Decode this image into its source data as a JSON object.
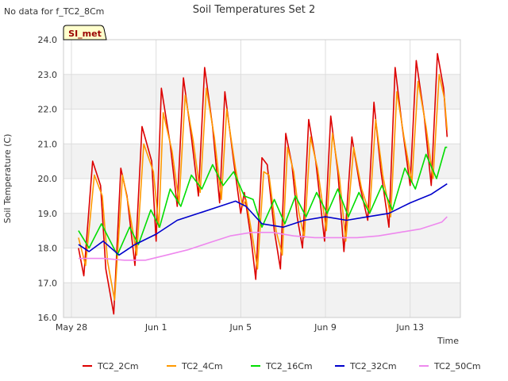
{
  "page": {
    "corner_note": "No data for f_TC2_8Cm",
    "badge": "SI_met"
  },
  "chart_data": {
    "type": "line",
    "title": "Soil Temperatures Set 2",
    "xlabel": "Time",
    "ylabel": "Soil Temperature (C)",
    "xlim": [
      "2024-05-28",
      "2024-06-15"
    ],
    "ylim": [
      16.0,
      24.0
    ],
    "x_ticks": [
      {
        "date": "2024-05-28",
        "label": "May 28"
      },
      {
        "date": "2024-06-01",
        "label": "Jun 1"
      },
      {
        "date": "2024-06-05",
        "label": "Jun 5"
      },
      {
        "date": "2024-06-09",
        "label": "Jun 9"
      },
      {
        "date": "2024-06-13",
        "label": "Jun 13"
      }
    ],
    "y_ticks": [
      16.0,
      17.0,
      18.0,
      19.0,
      20.0,
      21.0,
      22.0,
      23.0,
      24.0
    ],
    "y_tick_labels": [
      "16.0",
      "17.0",
      "18.0",
      "19.0",
      "20.0",
      "21.0",
      "22.0",
      "23.0",
      "24.0"
    ],
    "grid": true,
    "legend_position": "bottom",
    "series": [
      {
        "name": "TC2_2Cm",
        "color": "#dd0000",
        "points": [
          [
            "2024-05-28 08:00",
            18.0
          ],
          [
            "2024-05-28 14:00",
            17.2
          ],
          [
            "2024-05-29 00:00",
            20.5
          ],
          [
            "2024-05-29 09:00",
            19.8
          ],
          [
            "2024-05-29 15:00",
            17.4
          ],
          [
            "2024-05-30 00:00",
            16.1
          ],
          [
            "2024-05-30 08:00",
            20.3
          ],
          [
            "2024-05-30 15:00",
            19.5
          ],
          [
            "2024-05-31 00:00",
            17.5
          ],
          [
            "2024-05-31 08:00",
            21.5
          ],
          [
            "2024-05-31 19:00",
            20.5
          ],
          [
            "2024-06-01 00:00",
            18.2
          ],
          [
            "2024-06-01 06:00",
            22.6
          ],
          [
            "2024-06-01 16:00",
            21.0
          ],
          [
            "2024-06-02 00:00",
            19.2
          ],
          [
            "2024-06-02 07:00",
            22.9
          ],
          [
            "2024-06-02 16:00",
            21.2
          ],
          [
            "2024-06-03 00:00",
            19.5
          ],
          [
            "2024-06-03 07:00",
            23.2
          ],
          [
            "2024-06-03 16:00",
            21.5
          ],
          [
            "2024-06-04 00:00",
            19.3
          ],
          [
            "2024-06-04 06:00",
            22.5
          ],
          [
            "2024-06-04 16:00",
            20.5
          ],
          [
            "2024-06-05 00:00",
            19.0
          ],
          [
            "2024-06-05 04:00",
            19.6
          ],
          [
            "2024-06-05 12:00",
            18.2
          ],
          [
            "2024-06-05 17:00",
            17.1
          ],
          [
            "2024-06-06 00:00",
            20.6
          ],
          [
            "2024-06-06 06:00",
            20.4
          ],
          [
            "2024-06-06 14:00",
            18.5
          ],
          [
            "2024-06-06 21:00",
            17.4
          ],
          [
            "2024-06-07 03:00",
            21.3
          ],
          [
            "2024-06-07 10:00",
            20.4
          ],
          [
            "2024-06-07 16:00",
            18.9
          ],
          [
            "2024-06-07 22:00",
            18.0
          ],
          [
            "2024-06-08 05:00",
            21.7
          ],
          [
            "2024-06-08 13:00",
            20.5
          ],
          [
            "2024-06-08 23:00",
            18.2
          ],
          [
            "2024-06-09 06:00",
            21.8
          ],
          [
            "2024-06-09 14:00",
            20.2
          ],
          [
            "2024-06-09 21:00",
            17.9
          ],
          [
            "2024-06-10 06:00",
            21.2
          ],
          [
            "2024-06-10 15:00",
            19.8
          ],
          [
            "2024-06-11 00:00",
            18.8
          ],
          [
            "2024-06-11 07:00",
            22.2
          ],
          [
            "2024-06-11 15:00",
            20.2
          ],
          [
            "2024-06-12 00:00",
            18.6
          ],
          [
            "2024-06-12 07:00",
            23.2
          ],
          [
            "2024-06-12 15:00",
            21.5
          ],
          [
            "2024-06-13 00:00",
            19.8
          ],
          [
            "2024-06-13 07:00",
            23.4
          ],
          [
            "2024-06-13 16:00",
            21.8
          ],
          [
            "2024-06-14 00:00",
            19.8
          ],
          [
            "2024-06-14 07:00",
            23.6
          ],
          [
            "2024-06-14 14:00",
            22.6
          ],
          [
            "2024-06-14 18:00",
            21.2
          ]
        ]
      },
      {
        "name": "TC2_4Cm",
        "color": "#ff9900",
        "points": [
          [
            "2024-05-28 08:00",
            18.3
          ],
          [
            "2024-05-28 16:00",
            17.5
          ],
          [
            "2024-05-29 02:00",
            20.1
          ],
          [
            "2024-05-29 11:00",
            19.5
          ],
          [
            "2024-05-29 17:00",
            17.6
          ],
          [
            "2024-05-30 01:00",
            16.5
          ],
          [
            "2024-05-30 10:00",
            20.1
          ],
          [
            "2024-05-30 17:00",
            19.2
          ],
          [
            "2024-05-31 02:00",
            17.8
          ],
          [
            "2024-05-31 10:00",
            21.0
          ],
          [
            "2024-05-31 21:00",
            20.2
          ],
          [
            "2024-06-01 03:00",
            18.6
          ],
          [
            "2024-06-01 08:00",
            21.9
          ],
          [
            "2024-06-01 18:00",
            20.8
          ],
          [
            "2024-06-02 02:00",
            19.3
          ],
          [
            "2024-06-02 09:00",
            22.4
          ],
          [
            "2024-06-02 18:00",
            21.1
          ],
          [
            "2024-06-03 02:00",
            19.6
          ],
          [
            "2024-06-03 09:00",
            22.6
          ],
          [
            "2024-06-03 18:00",
            21.2
          ],
          [
            "2024-06-04 02:00",
            19.4
          ],
          [
            "2024-06-04 08:00",
            22.0
          ],
          [
            "2024-06-04 18:00",
            20.3
          ],
          [
            "2024-06-05 02:00",
            19.2
          ],
          [
            "2024-06-05 06:00",
            19.4
          ],
          [
            "2024-06-05 14:00",
            18.2
          ],
          [
            "2024-06-05 19:00",
            17.4
          ],
          [
            "2024-06-06 02:00",
            20.2
          ],
          [
            "2024-06-06 08:00",
            20.1
          ],
          [
            "2024-06-06 16:00",
            18.5
          ],
          [
            "2024-06-06 23:00",
            17.8
          ],
          [
            "2024-06-07 05:00",
            20.9
          ],
          [
            "2024-06-07 12:00",
            20.2
          ],
          [
            "2024-06-07 18:00",
            19.0
          ],
          [
            "2024-06-08 00:00",
            18.3
          ],
          [
            "2024-06-08 07:00",
            21.2
          ],
          [
            "2024-06-08 15:00",
            20.3
          ],
          [
            "2024-06-09 01:00",
            18.5
          ],
          [
            "2024-06-09 08:00",
            21.3
          ],
          [
            "2024-06-09 16:00",
            20.0
          ],
          [
            "2024-06-09 23:00",
            18.2
          ],
          [
            "2024-06-10 08:00",
            20.9
          ],
          [
            "2024-06-10 17:00",
            19.7
          ],
          [
            "2024-06-11 02:00",
            19.0
          ],
          [
            "2024-06-11 09:00",
            21.7
          ],
          [
            "2024-06-11 17:00",
            20.1
          ],
          [
            "2024-06-12 02:00",
            18.9
          ],
          [
            "2024-06-12 09:00",
            22.5
          ],
          [
            "2024-06-12 17:00",
            21.2
          ],
          [
            "2024-06-13 02:00",
            19.9
          ],
          [
            "2024-06-13 09:00",
            22.8
          ],
          [
            "2024-06-13 18:00",
            21.5
          ],
          [
            "2024-06-14 02:00",
            20.0
          ],
          [
            "2024-06-14 09:00",
            23.0
          ],
          [
            "2024-06-14 15:00",
            22.3
          ],
          [
            "2024-06-14 18:00",
            21.4
          ]
        ]
      },
      {
        "name": "TC2_16Cm",
        "color": "#00dd00",
        "points": [
          [
            "2024-05-28 08:00",
            18.5
          ],
          [
            "2024-05-28 20:00",
            18.0
          ],
          [
            "2024-05-29 10:00",
            18.7
          ],
          [
            "2024-05-29 20:00",
            18.2
          ],
          [
            "2024-05-30 04:00",
            17.8
          ],
          [
            "2024-05-30 18:00",
            18.6
          ],
          [
            "2024-05-31 04:00",
            18.1
          ],
          [
            "2024-05-31 18:00",
            19.1
          ],
          [
            "2024-06-01 04:00",
            18.6
          ],
          [
            "2024-06-01 16:00",
            19.7
          ],
          [
            "2024-06-02 04:00",
            19.2
          ],
          [
            "2024-06-02 16:00",
            20.1
          ],
          [
            "2024-06-03 04:00",
            19.7
          ],
          [
            "2024-06-03 16:00",
            20.4
          ],
          [
            "2024-06-04 04:00",
            19.8
          ],
          [
            "2024-06-04 16:00",
            20.2
          ],
          [
            "2024-06-05 04:00",
            19.5
          ],
          [
            "2024-06-05 14:00",
            19.4
          ],
          [
            "2024-06-06 00:00",
            18.6
          ],
          [
            "2024-06-06 14:00",
            19.4
          ],
          [
            "2024-06-07 02:00",
            18.7
          ],
          [
            "2024-06-07 14:00",
            19.5
          ],
          [
            "2024-06-08 02:00",
            18.9
          ],
          [
            "2024-06-08 14:00",
            19.6
          ],
          [
            "2024-06-09 02:00",
            19.0
          ],
          [
            "2024-06-09 14:00",
            19.7
          ],
          [
            "2024-06-10 02:00",
            18.9
          ],
          [
            "2024-06-10 14:00",
            19.6
          ],
          [
            "2024-06-11 02:00",
            19.0
          ],
          [
            "2024-06-11 16:00",
            19.8
          ],
          [
            "2024-06-12 04:00",
            19.1
          ],
          [
            "2024-06-12 18:00",
            20.3
          ],
          [
            "2024-06-13 06:00",
            19.7
          ],
          [
            "2024-06-13 18:00",
            20.7
          ],
          [
            "2024-06-14 06:00",
            20.0
          ],
          [
            "2024-06-14 16:00",
            20.9
          ],
          [
            "2024-06-14 18:00",
            20.9
          ]
        ]
      },
      {
        "name": "TC2_32Cm",
        "color": "#0000cc",
        "points": [
          [
            "2024-05-28 08:00",
            18.1
          ],
          [
            "2024-05-28 20:00",
            17.9
          ],
          [
            "2024-05-29 12:00",
            18.2
          ],
          [
            "2024-05-30 06:00",
            17.8
          ],
          [
            "2024-05-31 00:00",
            18.1
          ],
          [
            "2024-06-01 00:00",
            18.4
          ],
          [
            "2024-06-02 00:00",
            18.8
          ],
          [
            "2024-06-03 00:00",
            19.0
          ],
          [
            "2024-06-04 00:00",
            19.2
          ],
          [
            "2024-06-04 18:00",
            19.35
          ],
          [
            "2024-06-05 06:00",
            19.2
          ],
          [
            "2024-06-06 00:00",
            18.7
          ],
          [
            "2024-06-07 00:00",
            18.6
          ],
          [
            "2024-06-08 00:00",
            18.8
          ],
          [
            "2024-06-09 00:00",
            18.9
          ],
          [
            "2024-06-10 00:00",
            18.8
          ],
          [
            "2024-06-11 00:00",
            18.9
          ],
          [
            "2024-06-12 00:00",
            19.0
          ],
          [
            "2024-06-13 00:00",
            19.3
          ],
          [
            "2024-06-14 00:00",
            19.55
          ],
          [
            "2024-06-14 18:00",
            19.85
          ]
        ]
      },
      {
        "name": "TC2_50Cm",
        "color": "#ee88ee",
        "points": [
          [
            "2024-05-28 08:00",
            17.7
          ],
          [
            "2024-05-29 12:00",
            17.7
          ],
          [
            "2024-05-30 12:00",
            17.65
          ],
          [
            "2024-05-31 12:00",
            17.65
          ],
          [
            "2024-06-01 12:00",
            17.8
          ],
          [
            "2024-06-02 12:00",
            17.95
          ],
          [
            "2024-06-03 12:00",
            18.15
          ],
          [
            "2024-06-04 12:00",
            18.35
          ],
          [
            "2024-06-05 12:00",
            18.45
          ],
          [
            "2024-06-06 12:00",
            18.45
          ],
          [
            "2024-06-07 12:00",
            18.35
          ],
          [
            "2024-06-08 12:00",
            18.3
          ],
          [
            "2024-06-09 12:00",
            18.3
          ],
          [
            "2024-06-10 12:00",
            18.3
          ],
          [
            "2024-06-11 12:00",
            18.35
          ],
          [
            "2024-06-12 12:00",
            18.45
          ],
          [
            "2024-06-13 12:00",
            18.55
          ],
          [
            "2024-06-14 12:00",
            18.75
          ],
          [
            "2024-06-14 18:00",
            18.9
          ]
        ]
      }
    ]
  }
}
